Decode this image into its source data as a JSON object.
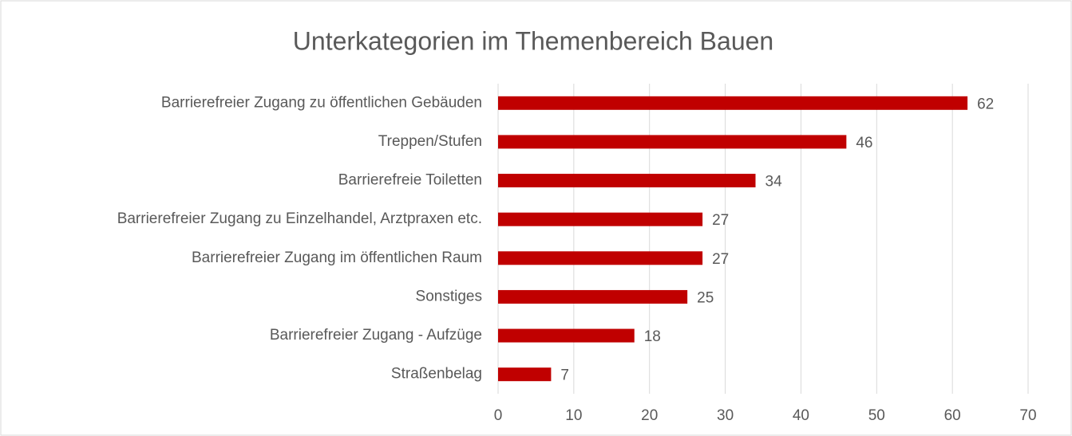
{
  "chart_data": {
    "type": "bar",
    "orientation": "horizontal",
    "title": "Unterkategorien im Themenbereich Bauen",
    "categories": [
      "Barrierefreier Zugang zu öffentlichen Gebäuden",
      "Treppen/Stufen",
      "Barrierefreie Toiletten",
      "Barrierefreier Zugang zu Einzelhandel, Arztpraxen etc.",
      "Barrierefreier Zugang im öffentlichen Raum",
      "Sonstiges",
      "Barrierefreier Zugang - Aufzüge",
      "Straßenbelag"
    ],
    "values": [
      62,
      46,
      34,
      27,
      27,
      25,
      18,
      7
    ],
    "color": "#c00000",
    "xlim": [
      0,
      70
    ],
    "xticks": [
      0,
      10,
      20,
      30,
      40,
      50,
      60,
      70
    ],
    "grid": true
  }
}
